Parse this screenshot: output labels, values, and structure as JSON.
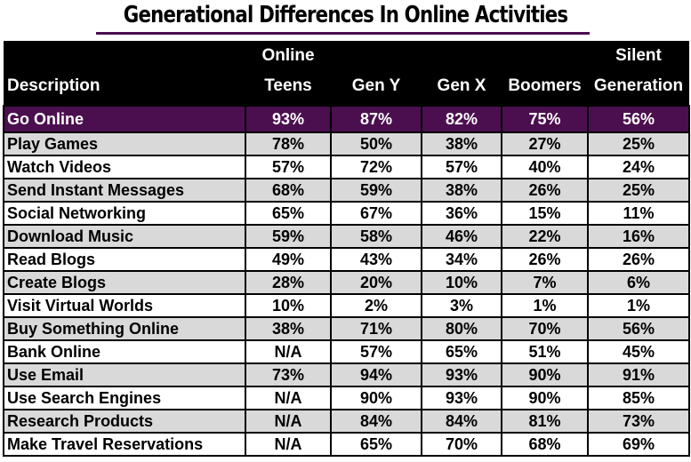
{
  "title": "Generational Differences In Online Activities",
  "chart_data": {
    "type": "table",
    "title": "Generational Differences In Online Activities",
    "columns": [
      "Description",
      "Online Teens",
      "Gen Y",
      "Gen X",
      "Boomers",
      "Silent Generation"
    ],
    "rows": [
      [
        "Go Online",
        "93%",
        "87%",
        "82%",
        "75%",
        "56%"
      ],
      [
        "Play Games",
        "78%",
        "50%",
        "38%",
        "27%",
        "25%"
      ],
      [
        "Watch Videos",
        "57%",
        "72%",
        "57%",
        "40%",
        "24%"
      ],
      [
        "Send Instant Messages",
        "68%",
        "59%",
        "38%",
        "26%",
        "25%"
      ],
      [
        "Social Networking",
        "65%",
        "67%",
        "36%",
        "15%",
        "11%"
      ],
      [
        "Download Music",
        "59%",
        "58%",
        "46%",
        "22%",
        "16%"
      ],
      [
        "Read Blogs",
        "49%",
        "43%",
        "34%",
        "26%",
        "26%"
      ],
      [
        "Create Blogs",
        "28%",
        "20%",
        "10%",
        "7%",
        "6%"
      ],
      [
        "Visit Virtual Worlds",
        "10%",
        "2%",
        "3%",
        "1%",
        "1%"
      ],
      [
        "Buy Something Online",
        "38%",
        "71%",
        "80%",
        "70%",
        "56%"
      ],
      [
        "Bank Online",
        "N/A",
        "57%",
        "65%",
        "51%",
        "45%"
      ],
      [
        "Use Email",
        "73%",
        "94%",
        "93%",
        "90%",
        "91%"
      ],
      [
        "Use Search Engines",
        "N/A",
        "90%",
        "93%",
        "90%",
        "85%"
      ],
      [
        "Research Products",
        "N/A",
        "84%",
        "84%",
        "81%",
        "73%"
      ],
      [
        "Make Travel Reservations",
        "N/A",
        "65%",
        "70%",
        "68%",
        "69%"
      ]
    ]
  },
  "colors": {
    "header_bg": "#000000",
    "highlight_row": "#4b0f4f",
    "alt_row": "#d9d9d9"
  }
}
